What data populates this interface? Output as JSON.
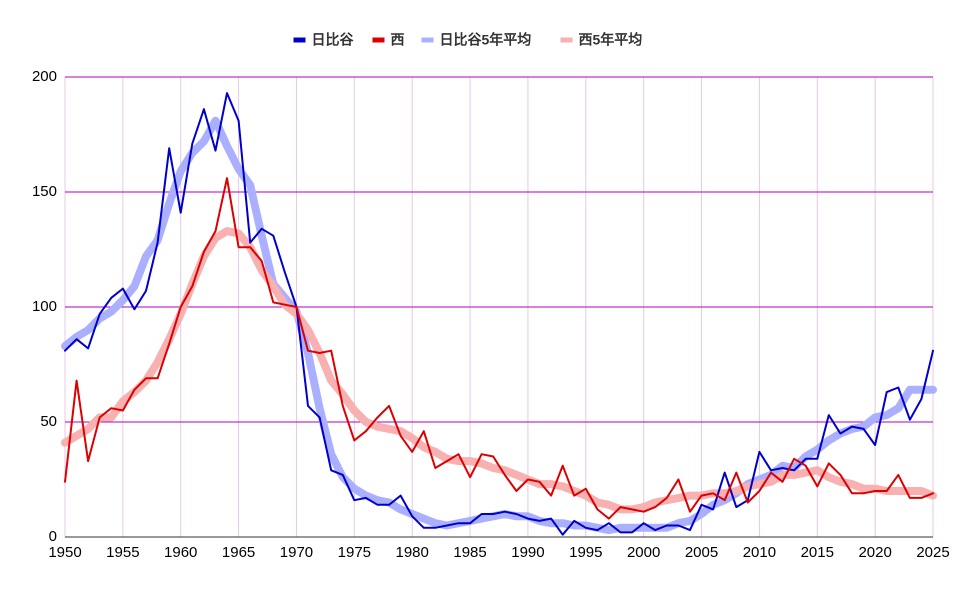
{
  "chart_data": {
    "type": "line",
    "x": [
      1950,
      1951,
      1952,
      1953,
      1954,
      1955,
      1956,
      1957,
      1958,
      1959,
      1960,
      1961,
      1962,
      1963,
      1964,
      1965,
      1966,
      1967,
      1968,
      1969,
      1970,
      1971,
      1972,
      1973,
      1974,
      1975,
      1976,
      1977,
      1978,
      1979,
      1980,
      1981,
      1982,
      1983,
      1984,
      1985,
      1986,
      1987,
      1988,
      1989,
      1990,
      1991,
      1992,
      1993,
      1994,
      1995,
      1996,
      1997,
      1998,
      1999,
      2000,
      2001,
      2002,
      2003,
      2004,
      2005,
      2006,
      2007,
      2008,
      2009,
      2010,
      2011,
      2012,
      2013,
      2014,
      2015,
      2016,
      2017,
      2018,
      2019,
      2020,
      2021,
      2022,
      2023,
      2024,
      2025
    ],
    "series": [
      {
        "name": "日比谷5年平均",
        "color": "#aab0ff",
        "line_width": 8,
        "values": [
          83,
          87,
          90,
          95,
          98,
          103,
          109,
          122,
          129,
          145,
          159,
          167,
          172,
          181,
          170,
          160,
          153,
          131,
          110,
          104,
          98,
          80,
          56,
          36,
          26,
          21,
          18,
          16,
          15,
          12,
          10,
          8,
          6,
          5,
          6,
          7,
          8,
          9,
          10,
          9,
          9,
          7,
          6,
          6,
          5,
          5,
          4,
          3,
          4,
          4,
          4,
          4,
          4,
          6,
          7,
          10,
          14,
          16,
          19,
          23,
          25,
          27,
          31,
          30,
          35,
          38,
          42,
          45,
          47,
          48,
          52,
          53,
          56,
          64,
          64,
          64
        ]
      },
      {
        "name": "西5年平均",
        "color": "#f8b0b0",
        "line_width": 8,
        "values": [
          41,
          44,
          47,
          52,
          52,
          59,
          63,
          68,
          76,
          86,
          97,
          110,
          122,
          130,
          133,
          132,
          126,
          116,
          109,
          101,
          97,
          90,
          80,
          68,
          62,
          55,
          50,
          48,
          47,
          46,
          43,
          39,
          37,
          34,
          33,
          33,
          32,
          30,
          29,
          27,
          25,
          23,
          23,
          22,
          20,
          18,
          15,
          14,
          12,
          12,
          13,
          15,
          16,
          17,
          18,
          18,
          19,
          19,
          20,
          22,
          23,
          24,
          27,
          27,
          28,
          29,
          26,
          24,
          23,
          21,
          21,
          20,
          20,
          20,
          20,
          18
        ]
      },
      {
        "name": "日比谷",
        "color": "#0000cc",
        "line_width": 2,
        "values": [
          81,
          86,
          82,
          97,
          104,
          108,
          99,
          107,
          128,
          169,
          141,
          171,
          186,
          168,
          193,
          181,
          128,
          134,
          131,
          115,
          100,
          57,
          52,
          29,
          27,
          16,
          17,
          14,
          14,
          18,
          9,
          4,
          4,
          5,
          6,
          6,
          10,
          10,
          11,
          10,
          8,
          7,
          8,
          1,
          7,
          4,
          3,
          6,
          2,
          2,
          6,
          3,
          5,
          5,
          3,
          14,
          12,
          28,
          13,
          16,
          37,
          29,
          30,
          29,
          34,
          34,
          53,
          45,
          48,
          47,
          40,
          63,
          65,
          51,
          60,
          81
        ]
      },
      {
        "name": "西",
        "color": "#dd0000",
        "line_width": 2,
        "values": [
          24,
          68,
          33,
          52,
          56,
          55,
          64,
          69,
          69,
          84,
          100,
          109,
          124,
          133,
          156,
          126,
          126,
          120,
          102,
          101,
          100,
          81,
          80,
          81,
          57,
          42,
          46,
          52,
          57,
          44,
          37,
          46,
          30,
          33,
          36,
          26,
          36,
          35,
          27,
          20,
          25,
          24,
          18,
          31,
          18,
          21,
          12,
          8,
          13,
          12,
          11,
          13,
          17,
          25,
          11,
          18,
          19,
          16,
          28,
          15,
          20,
          28,
          24,
          34,
          31,
          22,
          32,
          27,
          19,
          19,
          20,
          20,
          27,
          17,
          17,
          19
        ]
      }
    ],
    "legend_order": [
      2,
      3,
      0,
      1
    ],
    "xlim": [
      1950,
      2025
    ],
    "xticks": [
      1950,
      1955,
      1960,
      1965,
      1970,
      1975,
      1980,
      1985,
      1990,
      1995,
      2000,
      2005,
      2010,
      2015,
      2020,
      2025
    ],
    "ylim": [
      0,
      200
    ],
    "yticks": [
      0,
      50,
      100,
      150,
      200
    ],
    "grid": true,
    "legend": "top"
  }
}
